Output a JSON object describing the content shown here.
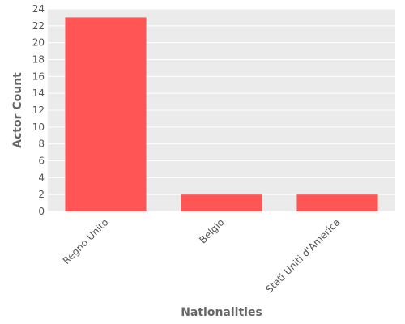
{
  "chart_data": {
    "type": "bar",
    "categories": [
      "Regno Unito",
      "Belgio",
      "Stati Uniti d'America"
    ],
    "values": [
      23,
      2,
      2
    ],
    "title": "",
    "xlabel": "Nationalities",
    "ylabel": "Actor Count",
    "ylim": [
      0,
      24
    ],
    "yticks": [
      0,
      2,
      4,
      6,
      8,
      10,
      12,
      14,
      16,
      18,
      20,
      22,
      24
    ],
    "grid": true,
    "bar_color": "#ff5555",
    "panel_color": "#ebebeb"
  }
}
